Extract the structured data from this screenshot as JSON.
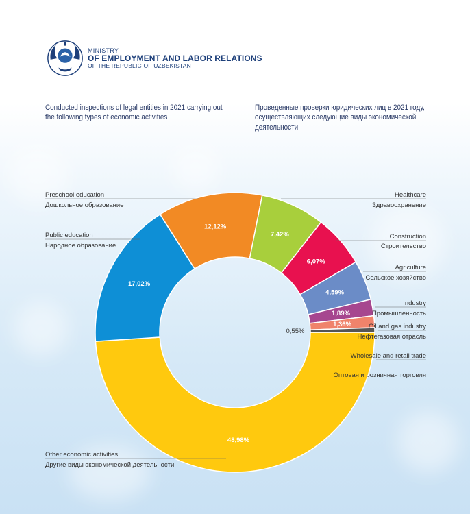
{
  "header": {
    "ministry_line1": "MINISTRY",
    "ministry_line2": "OF EMPLOYMENT AND LABOR RELATIONS",
    "ministry_line3": "OF THE REPUBLIC OF UZBEKISTAN"
  },
  "titles": {
    "en": "Conducted inspections of legal entities in 2021 carrying out the following types of economic activities",
    "ru": "Проведенные проверки юридических лиц в 2021 году, осуществляющих следующие виды экономической деятельности"
  },
  "colors": {
    "title_text": "#2a3a66",
    "ministry_text": "#1d3f7a"
  },
  "chart_data": {
    "type": "pie",
    "variant": "donut",
    "unit": "%",
    "slices": [
      {
        "label_en": "Other economic activities",
        "label_ru": "Другие виды экономической деятельности",
        "value": 48.98,
        "value_text": "48,98%",
        "color": "#ffc90e"
      },
      {
        "label_en": "Public education",
        "label_ru": "Народное образование",
        "value": 17.02,
        "value_text": "17,02%",
        "color": "#0e8fd6"
      },
      {
        "label_en": "Preschool education",
        "label_ru": "Дошкольное образование",
        "value": 12.12,
        "value_text": "12,12%",
        "color": "#f28a24"
      },
      {
        "label_en": "Healthcare",
        "label_ru": "Здравоохранение",
        "value": 7.42,
        "value_text": "7,42%",
        "color": "#a8cf3c"
      },
      {
        "label_en": "Construction",
        "label_ru": "Строительство",
        "value": 6.07,
        "value_text": "6,07%",
        "color": "#e8114f"
      },
      {
        "label_en": "Agriculture",
        "label_ru": "Сельское хозяйство",
        "value": 4.59,
        "value_text": "4,59%",
        "color": "#6b8cc7"
      },
      {
        "label_en": "Industry",
        "label_ru": "Промышленность",
        "value": 1.89,
        "value_text": "1,89%",
        "color": "#a6468f"
      },
      {
        "label_en": "Oil and gas industry",
        "label_ru": "Нефтегазовая отрасль",
        "value": 1.36,
        "value_text": "1,36%",
        "color": "#f0836b"
      },
      {
        "label_en": "Wholesale and retail trade",
        "label_ru": "Оптовая и розничная торговля",
        "value": 0.55,
        "value_text": "0,55%",
        "color": "#555555"
      }
    ]
  }
}
